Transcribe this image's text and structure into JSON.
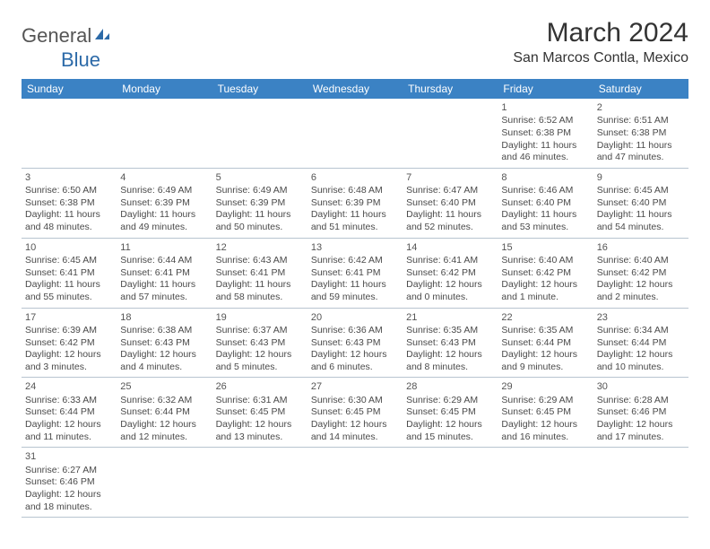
{
  "logo": {
    "text1": "General",
    "text2": "Blue"
  },
  "title": "March 2024",
  "location": "San Marcos Contla, Mexico",
  "colors": {
    "header_bg": "#3b82c4",
    "header_fg": "#ffffff",
    "grid_border": "#b8c4d0",
    "text": "#4a4a4a",
    "logo_gray": "#555555",
    "logo_blue": "#2c6aa8"
  },
  "days_of_week": [
    "Sunday",
    "Monday",
    "Tuesday",
    "Wednesday",
    "Thursday",
    "Friday",
    "Saturday"
  ],
  "weeks": [
    [
      null,
      null,
      null,
      null,
      null,
      {
        "n": "1",
        "sr": "Sunrise: 6:52 AM",
        "ss": "Sunset: 6:38 PM",
        "dl1": "Daylight: 11 hours",
        "dl2": "and 46 minutes."
      },
      {
        "n": "2",
        "sr": "Sunrise: 6:51 AM",
        "ss": "Sunset: 6:38 PM",
        "dl1": "Daylight: 11 hours",
        "dl2": "and 47 minutes."
      }
    ],
    [
      {
        "n": "3",
        "sr": "Sunrise: 6:50 AM",
        "ss": "Sunset: 6:38 PM",
        "dl1": "Daylight: 11 hours",
        "dl2": "and 48 minutes."
      },
      {
        "n": "4",
        "sr": "Sunrise: 6:49 AM",
        "ss": "Sunset: 6:39 PM",
        "dl1": "Daylight: 11 hours",
        "dl2": "and 49 minutes."
      },
      {
        "n": "5",
        "sr": "Sunrise: 6:49 AM",
        "ss": "Sunset: 6:39 PM",
        "dl1": "Daylight: 11 hours",
        "dl2": "and 50 minutes."
      },
      {
        "n": "6",
        "sr": "Sunrise: 6:48 AM",
        "ss": "Sunset: 6:39 PM",
        "dl1": "Daylight: 11 hours",
        "dl2": "and 51 minutes."
      },
      {
        "n": "7",
        "sr": "Sunrise: 6:47 AM",
        "ss": "Sunset: 6:40 PM",
        "dl1": "Daylight: 11 hours",
        "dl2": "and 52 minutes."
      },
      {
        "n": "8",
        "sr": "Sunrise: 6:46 AM",
        "ss": "Sunset: 6:40 PM",
        "dl1": "Daylight: 11 hours",
        "dl2": "and 53 minutes."
      },
      {
        "n": "9",
        "sr": "Sunrise: 6:45 AM",
        "ss": "Sunset: 6:40 PM",
        "dl1": "Daylight: 11 hours",
        "dl2": "and 54 minutes."
      }
    ],
    [
      {
        "n": "10",
        "sr": "Sunrise: 6:45 AM",
        "ss": "Sunset: 6:41 PM",
        "dl1": "Daylight: 11 hours",
        "dl2": "and 55 minutes."
      },
      {
        "n": "11",
        "sr": "Sunrise: 6:44 AM",
        "ss": "Sunset: 6:41 PM",
        "dl1": "Daylight: 11 hours",
        "dl2": "and 57 minutes."
      },
      {
        "n": "12",
        "sr": "Sunrise: 6:43 AM",
        "ss": "Sunset: 6:41 PM",
        "dl1": "Daylight: 11 hours",
        "dl2": "and 58 minutes."
      },
      {
        "n": "13",
        "sr": "Sunrise: 6:42 AM",
        "ss": "Sunset: 6:41 PM",
        "dl1": "Daylight: 11 hours",
        "dl2": "and 59 minutes."
      },
      {
        "n": "14",
        "sr": "Sunrise: 6:41 AM",
        "ss": "Sunset: 6:42 PM",
        "dl1": "Daylight: 12 hours",
        "dl2": "and 0 minutes."
      },
      {
        "n": "15",
        "sr": "Sunrise: 6:40 AM",
        "ss": "Sunset: 6:42 PM",
        "dl1": "Daylight: 12 hours",
        "dl2": "and 1 minute."
      },
      {
        "n": "16",
        "sr": "Sunrise: 6:40 AM",
        "ss": "Sunset: 6:42 PM",
        "dl1": "Daylight: 12 hours",
        "dl2": "and 2 minutes."
      }
    ],
    [
      {
        "n": "17",
        "sr": "Sunrise: 6:39 AM",
        "ss": "Sunset: 6:42 PM",
        "dl1": "Daylight: 12 hours",
        "dl2": "and 3 minutes."
      },
      {
        "n": "18",
        "sr": "Sunrise: 6:38 AM",
        "ss": "Sunset: 6:43 PM",
        "dl1": "Daylight: 12 hours",
        "dl2": "and 4 minutes."
      },
      {
        "n": "19",
        "sr": "Sunrise: 6:37 AM",
        "ss": "Sunset: 6:43 PM",
        "dl1": "Daylight: 12 hours",
        "dl2": "and 5 minutes."
      },
      {
        "n": "20",
        "sr": "Sunrise: 6:36 AM",
        "ss": "Sunset: 6:43 PM",
        "dl1": "Daylight: 12 hours",
        "dl2": "and 6 minutes."
      },
      {
        "n": "21",
        "sr": "Sunrise: 6:35 AM",
        "ss": "Sunset: 6:43 PM",
        "dl1": "Daylight: 12 hours",
        "dl2": "and 8 minutes."
      },
      {
        "n": "22",
        "sr": "Sunrise: 6:35 AM",
        "ss": "Sunset: 6:44 PM",
        "dl1": "Daylight: 12 hours",
        "dl2": "and 9 minutes."
      },
      {
        "n": "23",
        "sr": "Sunrise: 6:34 AM",
        "ss": "Sunset: 6:44 PM",
        "dl1": "Daylight: 12 hours",
        "dl2": "and 10 minutes."
      }
    ],
    [
      {
        "n": "24",
        "sr": "Sunrise: 6:33 AM",
        "ss": "Sunset: 6:44 PM",
        "dl1": "Daylight: 12 hours",
        "dl2": "and 11 minutes."
      },
      {
        "n": "25",
        "sr": "Sunrise: 6:32 AM",
        "ss": "Sunset: 6:44 PM",
        "dl1": "Daylight: 12 hours",
        "dl2": "and 12 minutes."
      },
      {
        "n": "26",
        "sr": "Sunrise: 6:31 AM",
        "ss": "Sunset: 6:45 PM",
        "dl1": "Daylight: 12 hours",
        "dl2": "and 13 minutes."
      },
      {
        "n": "27",
        "sr": "Sunrise: 6:30 AM",
        "ss": "Sunset: 6:45 PM",
        "dl1": "Daylight: 12 hours",
        "dl2": "and 14 minutes."
      },
      {
        "n": "28",
        "sr": "Sunrise: 6:29 AM",
        "ss": "Sunset: 6:45 PM",
        "dl1": "Daylight: 12 hours",
        "dl2": "and 15 minutes."
      },
      {
        "n": "29",
        "sr": "Sunrise: 6:29 AM",
        "ss": "Sunset: 6:45 PM",
        "dl1": "Daylight: 12 hours",
        "dl2": "and 16 minutes."
      },
      {
        "n": "30",
        "sr": "Sunrise: 6:28 AM",
        "ss": "Sunset: 6:46 PM",
        "dl1": "Daylight: 12 hours",
        "dl2": "and 17 minutes."
      }
    ],
    [
      {
        "n": "31",
        "sr": "Sunrise: 6:27 AM",
        "ss": "Sunset: 6:46 PM",
        "dl1": "Daylight: 12 hours",
        "dl2": "and 18 minutes."
      },
      null,
      null,
      null,
      null,
      null,
      null
    ]
  ]
}
